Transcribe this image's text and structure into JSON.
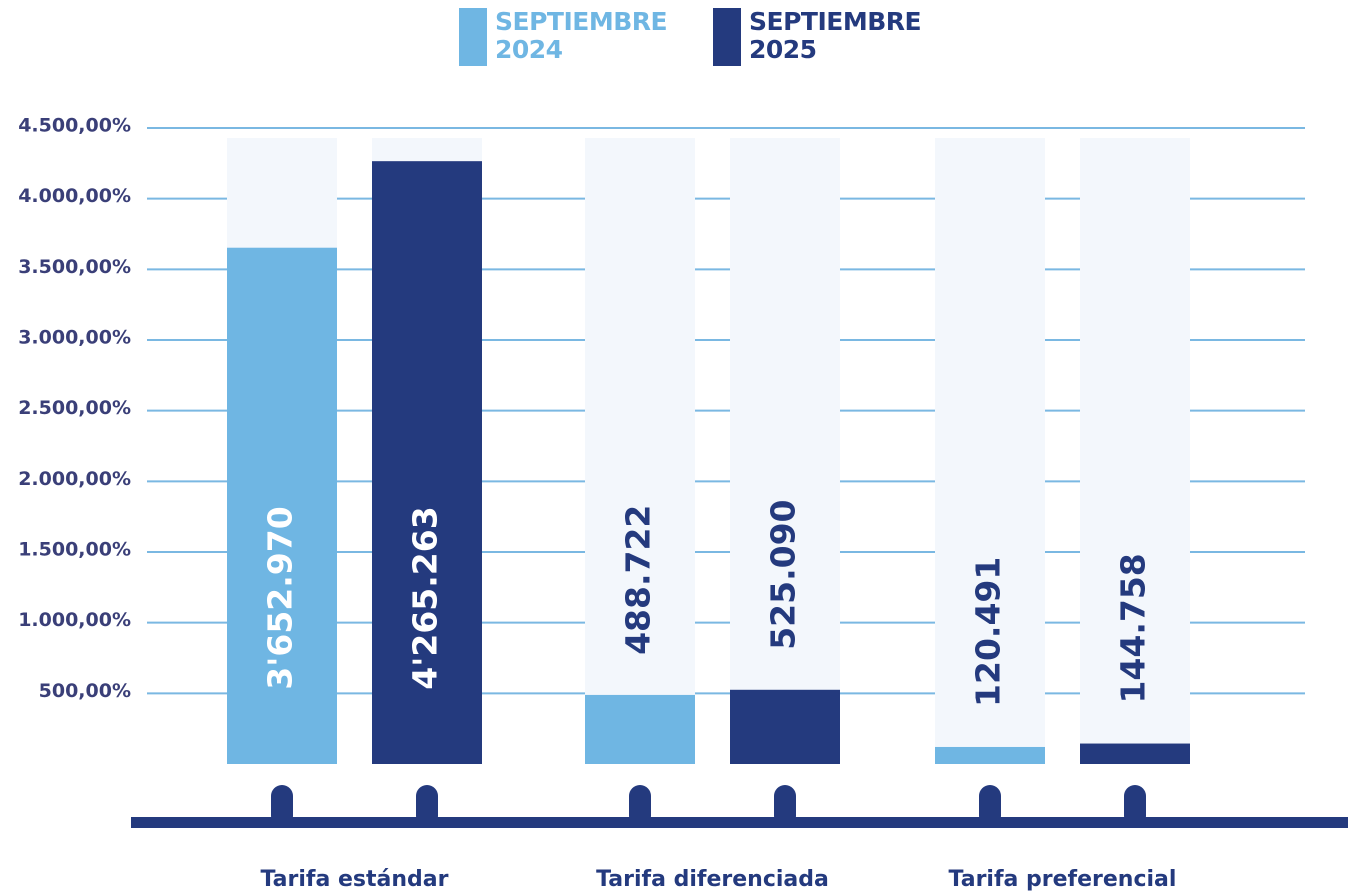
{
  "chart_data": {
    "type": "bar",
    "categories": [
      "Tarifa estándar",
      "Tarifa diferenciada",
      "Tarifa preferencial"
    ],
    "series": [
      {
        "name": "SEPTIEMBRE 2024",
        "color": "#6fb6e3",
        "values": [
          3652.97,
          488.722,
          120.491
        ],
        "value_labels": [
          "3'652.970",
          "488.722",
          "120.491"
        ]
      },
      {
        "name": "SEPTIEMBRE 2025",
        "color": "#243a7e",
        "values": [
          4265.263,
          525.09,
          144.758
        ],
        "value_labels": [
          "4'265.263",
          "525.090",
          "144.758"
        ]
      }
    ],
    "ylim": [
      0,
      4500
    ],
    "yticks": [
      {
        "value": 500,
        "label": "500,00%"
      },
      {
        "value": 1000,
        "label": "1.000,00%"
      },
      {
        "value": 1500,
        "label": "1.500,00%"
      },
      {
        "value": 2000,
        "label": "2.000,00%"
      },
      {
        "value": 2500,
        "label": "2.500,00%"
      },
      {
        "value": 3000,
        "label": "3.000,00%"
      },
      {
        "value": 3500,
        "label": "3.500,00%"
      },
      {
        "value": 4000,
        "label": "4.000,00%"
      },
      {
        "value": 4500,
        "label": "4.500,00%"
      }
    ],
    "grid": true
  }
}
